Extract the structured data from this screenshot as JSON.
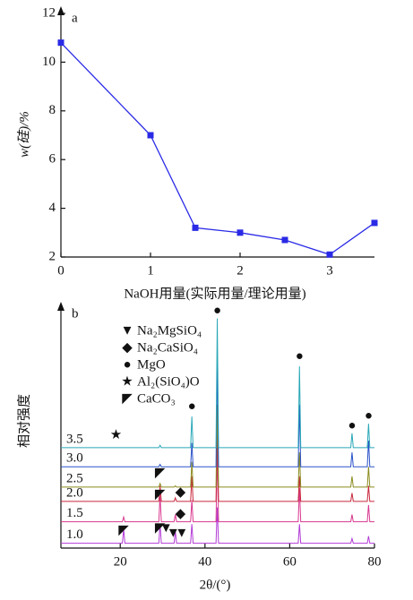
{
  "chart_data": [
    {
      "type": "line",
      "panel_label": "a",
      "ylabel": "w(硅)/%",
      "xlabel": "NaOH用量(实际用量/理论用量)",
      "x": [
        0,
        1,
        1.5,
        2,
        2.5,
        3,
        3.5
      ],
      "values": [
        10.8,
        7.0,
        3.2,
        3.0,
        2.7,
        2.1,
        3.4
      ],
      "color": "#2a2ae6",
      "xlim": [
        0,
        3.5
      ],
      "ylim": [
        2,
        12
      ],
      "xticks": [
        0,
        1,
        2,
        3
      ],
      "yticks": [
        2,
        4,
        6,
        8,
        10,
        12
      ]
    },
    {
      "type": "xrd",
      "panel_label": "b",
      "ylabel": "相对强度",
      "xlabel": "2θ/(°)",
      "xlim": [
        6,
        80
      ],
      "ylim": [
        0,
        100
      ],
      "xticks": [
        20,
        40,
        60,
        80
      ],
      "x": [
        6,
        20.5,
        20.8,
        21.1,
        29.1,
        29.4,
        29.7,
        32.7,
        33,
        33.3,
        36.6,
        36.9,
        37.2,
        42.6,
        42.9,
        43.2,
        62,
        62.3,
        62.6,
        74.4,
        74.7,
        75,
        78.3,
        78.6,
        78.9,
        80
      ],
      "series": [
        {
          "name": "1.0",
          "color": "#b23ad6",
          "values": [
            2,
            2,
            8,
            2,
            2,
            10,
            2,
            2,
            7,
            2,
            2,
            10,
            2,
            2,
            17,
            2,
            2,
            10,
            2,
            2,
            4,
            2,
            2,
            5,
            2,
            2
          ]
        },
        {
          "name": "1.5",
          "color": "#d8388f",
          "values": [
            11,
            11,
            13,
            11,
            11,
            22,
            11,
            11,
            14,
            11,
            11,
            20,
            11,
            11,
            40,
            11,
            11,
            25,
            11,
            11,
            14,
            11,
            11,
            18,
            11,
            11
          ]
        },
        {
          "name": "2.0",
          "color": "#c8283c",
          "values": [
            19.5,
            19.5,
            19.5,
            19.5,
            19.5,
            26,
            19.5,
            19.5,
            21,
            19.5,
            19.5,
            30,
            19.5,
            19.5,
            50,
            19.5,
            19.5,
            30,
            19.5,
            19.5,
            23,
            19.5,
            19.5,
            26,
            19.5,
            19.5
          ]
        },
        {
          "name": "2.5",
          "color": "#8a8a1e",
          "values": [
            25.5,
            25.5,
            25.5,
            25.5,
            25.5,
            27,
            25.5,
            25.5,
            26,
            25.5,
            25.5,
            36,
            25.5,
            25.5,
            60,
            25.5,
            25.5,
            40,
            25.5,
            25.5,
            30,
            25.5,
            25.5,
            34,
            25.5,
            25.5
          ]
        },
        {
          "name": "3.0",
          "color": "#2a52c8",
          "values": [
            34,
            34,
            34,
            34,
            34,
            35,
            34,
            34,
            34,
            34,
            34,
            44,
            34,
            34,
            80,
            34,
            34,
            60,
            34,
            34,
            40,
            34,
            34,
            45,
            34,
            34
          ]
        },
        {
          "name": "3.5",
          "color": "#2aa8b8",
          "values": [
            42,
            42,
            42,
            42,
            42,
            43,
            42,
            42,
            42,
            42,
            42,
            55,
            42,
            42,
            96,
            42,
            42,
            76,
            42,
            42,
            48,
            42,
            42,
            52,
            42,
            42
          ]
        }
      ],
      "legend": [
        {
          "symbol": "▼",
          "name": "Na₂MgSiO₄"
        },
        {
          "symbol": "◆",
          "name": "Na₂CaSiO₄"
        },
        {
          "symbol": "●",
          "name": "MgO"
        },
        {
          "symbol": "★",
          "name": "Al₂(SiO₄)O"
        },
        {
          "symbol": "◤",
          "name": "CaCO₃"
        }
      ],
      "phase_marks": [
        {
          "phase": 3,
          "x": 19,
          "y": 47
        },
        {
          "phase": 2,
          "x": 36.9,
          "y": 59
        },
        {
          "phase": 2,
          "x": 42.9,
          "y": 99
        },
        {
          "phase": 2,
          "x": 62.3,
          "y": 80
        },
        {
          "phase": 2,
          "x": 74.7,
          "y": 51
        },
        {
          "phase": 2,
          "x": 78.6,
          "y": 55
        },
        {
          "phase": 4,
          "x": 29.4,
          "y": 31
        },
        {
          "phase": 4,
          "x": 29.4,
          "y": 22
        },
        {
          "phase": 1,
          "x": 34.2,
          "y": 23
        },
        {
          "phase": 1,
          "x": 34.2,
          "y": 14
        },
        {
          "phase": 4,
          "x": 29.4,
          "y": 8
        },
        {
          "phase": 0,
          "x": 30.8,
          "y": 8
        },
        {
          "phase": 0,
          "x": 32.5,
          "y": 6
        },
        {
          "phase": 0,
          "x": 34.5,
          "y": 6
        },
        {
          "phase": 4,
          "x": 20.8,
          "y": 7
        }
      ]
    }
  ]
}
